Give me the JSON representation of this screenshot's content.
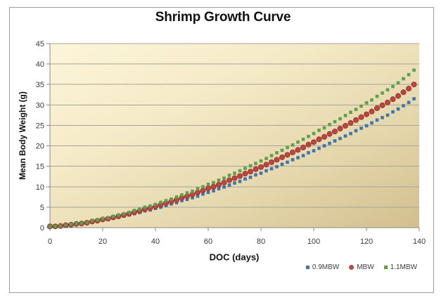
{
  "chart_data": {
    "type": "scatter",
    "title": "Shrimp Growth Curve",
    "xlabel": "DOC (days)",
    "ylabel": "Mean Body Weight (g)",
    "xlim": [
      0,
      140
    ],
    "ylim": [
      0,
      45
    ],
    "xticks": [
      0,
      20,
      40,
      60,
      80,
      100,
      120,
      140
    ],
    "yticks": [
      0,
      5,
      10,
      15,
      20,
      25,
      30,
      35,
      40,
      45
    ],
    "grid": "horizontal-only",
    "legend_position": "bottom-right",
    "plot_bg_gradient": [
      "#fdf5da",
      "#f5ebc8",
      "#e6d8ae",
      "#d2bf8e"
    ],
    "x": [
      0,
      2,
      4,
      6,
      8,
      10,
      12,
      14,
      16,
      18,
      20,
      22,
      24,
      26,
      28,
      30,
      32,
      34,
      36,
      38,
      40,
      42,
      44,
      46,
      48,
      50,
      52,
      54,
      56,
      58,
      60,
      62,
      64,
      66,
      68,
      70,
      72,
      74,
      76,
      78,
      80,
      82,
      84,
      86,
      88,
      90,
      92,
      94,
      96,
      98,
      100,
      102,
      104,
      106,
      108,
      110,
      112,
      114,
      116,
      118,
      120,
      122,
      124,
      126,
      128,
      130,
      132,
      134,
      136,
      138
    ],
    "series": [
      {
        "name": "0.9MBW",
        "marker": "square",
        "color": "#4273aa",
        "values": [
          0.3,
          0.3,
          0.4,
          0.5,
          0.6,
          0.8,
          0.9,
          1.1,
          1.4,
          1.5,
          1.8,
          2.0,
          2.3,
          2.5,
          2.8,
          3.1,
          3.4,
          3.7,
          4.1,
          4.3,
          4.7,
          5.0,
          5.4,
          5.8,
          6.1,
          6.6,
          6.9,
          7.3,
          7.7,
          8.2,
          8.6,
          9.0,
          9.5,
          9.9,
          10.4,
          10.9,
          11.3,
          11.9,
          12.3,
          12.9,
          13.3,
          13.9,
          14.4,
          14.9,
          15.5,
          16.0,
          16.6,
          17.1,
          17.6,
          18.3,
          18.8,
          19.4,
          20.0,
          20.6,
          21.2,
          21.8,
          22.4,
          23.0,
          23.7,
          24.3,
          24.9,
          25.6,
          26.3,
          26.9,
          27.5,
          28.3,
          29.0,
          29.8,
          30.6,
          31.5
        ]
      },
      {
        "name": "MBW",
        "marker": "circle",
        "color": "#bb4642",
        "stroke": "#93352f",
        "values": [
          0.3,
          0.3,
          0.4,
          0.6,
          0.7,
          0.9,
          1.0,
          1.2,
          1.5,
          1.7,
          2.0,
          2.2,
          2.5,
          2.8,
          3.1,
          3.4,
          3.8,
          4.1,
          4.5,
          4.8,
          5.2,
          5.6,
          6.0,
          6.4,
          6.8,
          7.3,
          7.7,
          8.1,
          8.6,
          9.1,
          9.6,
          10.0,
          10.5,
          11.0,
          11.6,
          12.1,
          12.6,
          13.2,
          13.7,
          14.3,
          14.8,
          15.4,
          16.0,
          16.6,
          17.2,
          17.8,
          18.4,
          19.0,
          19.6,
          20.3,
          20.9,
          21.6,
          22.2,
          22.9,
          23.5,
          24.2,
          24.9,
          25.6,
          26.3,
          27.0,
          27.7,
          28.4,
          29.2,
          29.9,
          30.6,
          31.4,
          32.2,
          33.1,
          34.0,
          35.0
        ]
      },
      {
        "name": "1.1MBW",
        "marker": "square",
        "color": "#5f9e4c",
        "values": [
          0.3,
          0.3,
          0.4,
          0.7,
          0.8,
          1.0,
          1.1,
          1.3,
          1.7,
          1.9,
          2.2,
          2.4,
          2.8,
          3.1,
          3.4,
          3.7,
          4.2,
          4.5,
          5.0,
          5.3,
          5.7,
          6.2,
          6.6,
          7.0,
          7.5,
          8.0,
          8.5,
          8.9,
          9.5,
          10.0,
          10.6,
          11.0,
          11.6,
          12.1,
          12.8,
          13.3,
          13.9,
          14.5,
          15.1,
          15.7,
          16.3,
          16.9,
          17.6,
          18.3,
          18.9,
          19.6,
          20.2,
          20.9,
          21.6,
          22.3,
          23.0,
          23.8,
          24.4,
          25.2,
          25.9,
          26.6,
          27.4,
          28.2,
          28.9,
          29.7,
          30.5,
          31.2,
          32.1,
          32.9,
          33.7,
          34.5,
          35.4,
          36.4,
          37.4,
          38.5
        ]
      }
    ],
    "axis_colors": {
      "gridline": "#a6a49c",
      "axis_line": "#8a8a85",
      "tick_label": "#3a3a3a"
    }
  }
}
